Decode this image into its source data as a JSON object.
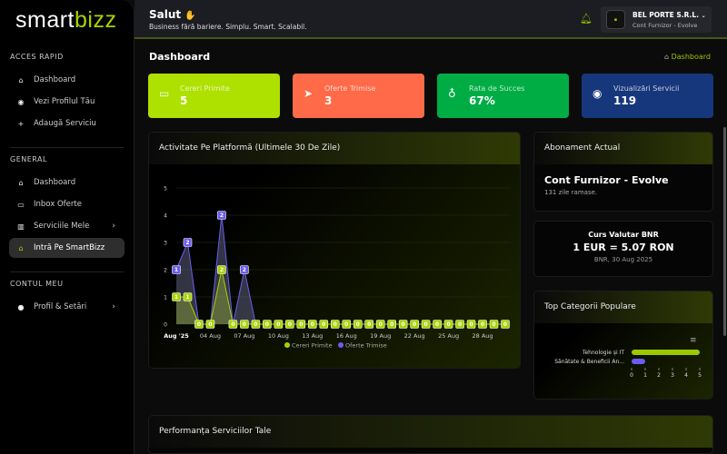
{
  "brand": {
    "part1": "smart",
    "part2": "bizz"
  },
  "sidebar": {
    "sections": [
      {
        "title": "ACCES RAPID",
        "items": [
          {
            "label": "Dashboard",
            "icon": "home-icon"
          },
          {
            "label": "Vezi Profilul Tău",
            "icon": "eye-icon"
          },
          {
            "label": "Adaugă Serviciu",
            "icon": "plus-icon"
          }
        ]
      },
      {
        "title": "GENERAL",
        "items": [
          {
            "label": "Dashboard",
            "icon": "home-icon"
          },
          {
            "label": "Inbox Oferte",
            "icon": "inbox-icon"
          },
          {
            "label": "Serviciile Mele",
            "icon": "services-icon",
            "chevron": true
          },
          {
            "label": "Intră Pe SmartBizz",
            "icon": "home-icon",
            "active": true
          }
        ]
      },
      {
        "title": "CONTUL MEU",
        "items": [
          {
            "label": "Profil & Setări",
            "icon": "user-icon",
            "chevron": true
          }
        ]
      }
    ]
  },
  "topbar": {
    "greeting": "Salut",
    "wave": "✋",
    "subtitle": "Business fără bariere. Simplu. Smart. Scalabil.",
    "user": {
      "name": "BEL PORTE S.R.L.",
      "role": "Cont Furnizor - Evolve"
    }
  },
  "page": {
    "title": "Dashboard",
    "breadcrumb": "Dashboard"
  },
  "stats": [
    {
      "label": "Cereri Primite",
      "value": "5",
      "color": "#aee000",
      "icon": "inbox-icon"
    },
    {
      "label": "Oferte Trimise",
      "value": "3",
      "color": "#ff6a48",
      "icon": "send-icon"
    },
    {
      "label": "Rata de Succes",
      "value": "67%",
      "color": "#00ad45",
      "icon": "award-icon"
    },
    {
      "label": "Vizualizări Servicii",
      "value": "119",
      "color": "#17377c",
      "icon": "eye-icon"
    }
  ],
  "activity": {
    "title": "Activitate Pe Platformă (Ultimele 30 De Zile)"
  },
  "subscription": {
    "title": "Abonament Actual",
    "plan": "Cont Furnizor - Evolve",
    "remaining": "131 zile ramase."
  },
  "exchange": {
    "title": "Curs Valutar BNR",
    "rate": "1 EUR = 5.07 RON",
    "source": "BNR, 30 Aug 2025"
  },
  "categories": {
    "title": "Top Categorii Populare"
  },
  "performance": {
    "title": "Performanța Serviciilor Tale"
  },
  "chart_data": [
    {
      "type": "area",
      "stacked": true,
      "ylim": [
        0,
        5
      ],
      "yticks": [
        0,
        1,
        2,
        3,
        4,
        5
      ],
      "xticks": [
        "Aug '25",
        "04 Aug",
        "07 Aug",
        "10 Aug",
        "13 Aug",
        "16 Aug",
        "19 Aug",
        "22 Aug",
        "25 Aug",
        "28 Aug"
      ],
      "x": [
        "01 Aug",
        "02 Aug",
        "03 Aug",
        "04 Aug",
        "05 Aug",
        "06 Aug",
        "07 Aug",
        "08 Aug",
        "09 Aug",
        "10 Aug",
        "11 Aug",
        "12 Aug",
        "13 Aug",
        "14 Aug",
        "15 Aug",
        "16 Aug",
        "17 Aug",
        "18 Aug",
        "19 Aug",
        "20 Aug",
        "21 Aug",
        "22 Aug",
        "23 Aug",
        "24 Aug",
        "25 Aug",
        "26 Aug",
        "27 Aug",
        "28 Aug",
        "29 Aug",
        "30 Aug"
      ],
      "series": [
        {
          "name": "Cereri Primite",
          "color": "#a8d400",
          "values": [
            1,
            1,
            0,
            0,
            2,
            0,
            0,
            0,
            0,
            0,
            0,
            0,
            0,
            0,
            0,
            0,
            0,
            0,
            0,
            0,
            0,
            0,
            0,
            0,
            0,
            0,
            0,
            0,
            0,
            0
          ]
        },
        {
          "name": "Oferte Trimise",
          "color": "#6b5cf0",
          "values": [
            1,
            2,
            0,
            0,
            2,
            0,
            2,
            0,
            0,
            0,
            0,
            0,
            0,
            0,
            0,
            0,
            0,
            0,
            0,
            0,
            0,
            0,
            0,
            0,
            0,
            0,
            0,
            0,
            0,
            0
          ]
        }
      ],
      "grid": true,
      "legend": "bottom"
    },
    {
      "type": "bar",
      "orientation": "horizontal",
      "categories": [
        "Tehnologie și IT",
        "Sănătate & Beneficii An..."
      ],
      "values": [
        5,
        1
      ],
      "colors": [
        "#9cc800",
        "#6b5cf0"
      ],
      "xlim": [
        0,
        5
      ],
      "xticks": [
        0,
        1,
        2,
        3,
        4,
        5
      ]
    }
  ]
}
